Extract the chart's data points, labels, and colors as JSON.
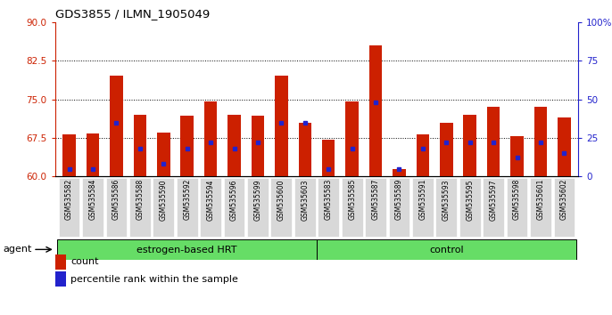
{
  "title": "GDS3855 / ILMN_1905049",
  "samples": [
    "GSM535582",
    "GSM535584",
    "GSM535586",
    "GSM535588",
    "GSM535590",
    "GSM535592",
    "GSM535594",
    "GSM535596",
    "GSM535599",
    "GSM535600",
    "GSM535603",
    "GSM535583",
    "GSM535585",
    "GSM535587",
    "GSM535589",
    "GSM535591",
    "GSM535593",
    "GSM535595",
    "GSM535597",
    "GSM535598",
    "GSM535601",
    "GSM535602"
  ],
  "count_values": [
    68.2,
    68.4,
    79.5,
    72.0,
    68.5,
    71.8,
    74.5,
    72.0,
    71.8,
    79.5,
    70.5,
    67.2,
    74.5,
    85.5,
    61.5,
    68.2,
    70.5,
    72.0,
    73.5,
    67.8,
    73.5,
    71.5
  ],
  "percentile_values": [
    5,
    5,
    35,
    18,
    8,
    18,
    22,
    18,
    22,
    35,
    38,
    5,
    18,
    48,
    5,
    18,
    22,
    22,
    22,
    12,
    22,
    15
  ],
  "group1_label": "estrogen-based HRT",
  "group1_count": 11,
  "group2_label": "control",
  "group2_count": 11,
  "group_color": "#66DD66",
  "bar_color": "#CC2000",
  "marker_color": "#2222CC",
  "ylim_left": [
    60,
    90
  ],
  "ylim_right": [
    0,
    100
  ],
  "yticks_left": [
    60,
    67.5,
    75,
    82.5,
    90
  ],
  "yticks_right": [
    0,
    25,
    50,
    75,
    100
  ],
  "grid_values": [
    67.5,
    75,
    82.5
  ],
  "agent_label": "agent",
  "legend_count": "count",
  "legend_pct": "percentile rank within the sample"
}
